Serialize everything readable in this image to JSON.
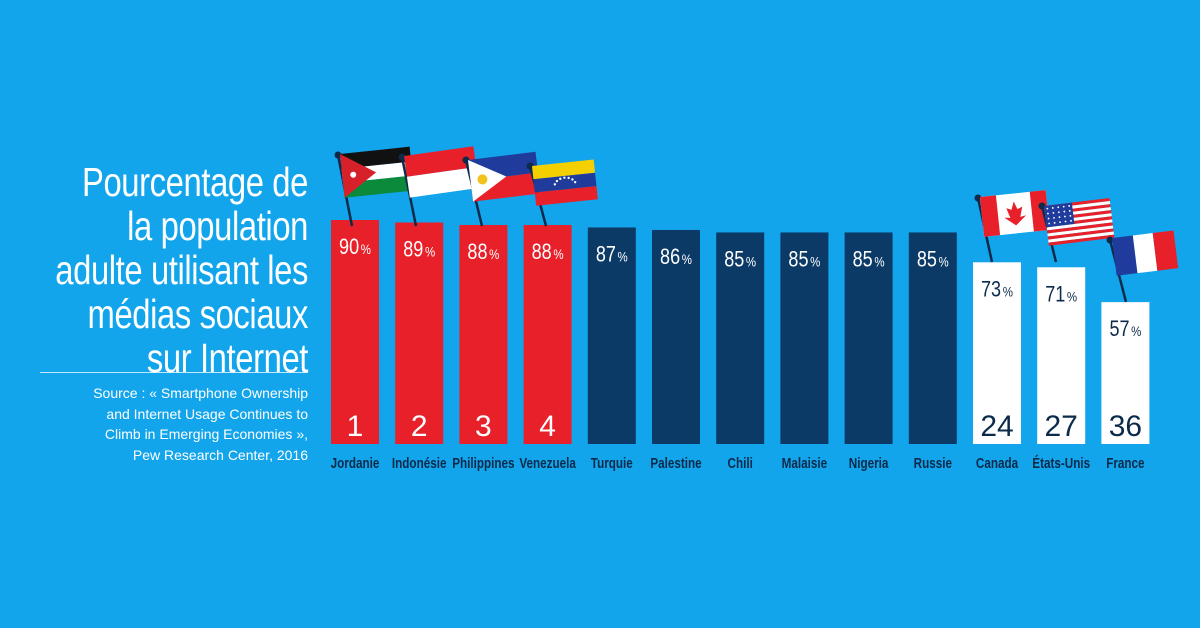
{
  "title": "Pourcentage de la population adulte utilisant les médias sociaux sur Internet",
  "source": "Source : « Smartphone Ownership and Internet Usage Continues to Climb in Emerging Economies », Pew Research Center, 2016",
  "colors": {
    "background": "#12a5ec",
    "top_rank": "#e8202a",
    "middle": "#0c3a66",
    "compare": "#ffffff",
    "label": "#0c2a4a"
  },
  "chart_data": {
    "type": "bar",
    "title": "Pourcentage de la population adulte utilisant les médias sociaux sur Internet",
    "xlabel": "",
    "ylabel": "",
    "unit": "%",
    "ylim": [
      0,
      100
    ],
    "grid": false,
    "categories": [
      "Jordanie",
      "Indonésie",
      "Philippines",
      "Venezuela",
      "Turquie",
      "Palestine",
      "Chili",
      "Malaisie",
      "Nigeria",
      "Russie",
      "Canada",
      "États-Unis",
      "France"
    ],
    "values": [
      90,
      89,
      88,
      88,
      87,
      86,
      85,
      85,
      85,
      85,
      73,
      71,
      57
    ],
    "ranks": [
      "1",
      "2",
      "3",
      "4",
      "",
      "",
      "",
      "",
      "",
      "",
      "24",
      "27",
      "36"
    ],
    "groups": [
      "top_rank",
      "top_rank",
      "top_rank",
      "top_rank",
      "middle",
      "middle",
      "middle",
      "middle",
      "middle",
      "middle",
      "compare",
      "compare",
      "compare"
    ],
    "flags": [
      "jordan-flag",
      "indonesia-flag",
      "philippines-flag",
      "venezuela-flag",
      "",
      "",
      "",
      "",
      "",
      "",
      "canada-flag",
      "usa-flag",
      "france-flag"
    ]
  }
}
